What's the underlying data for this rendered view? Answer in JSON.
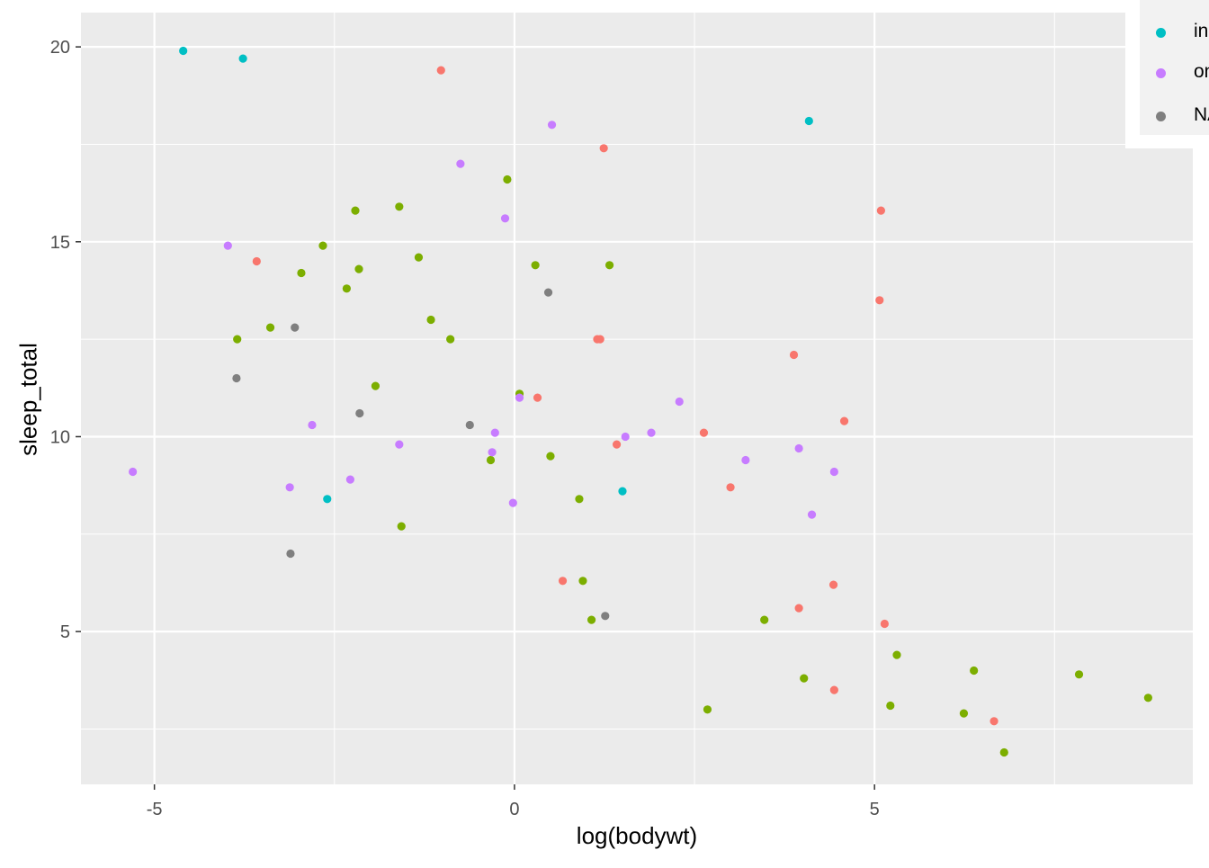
{
  "chart_data": {
    "type": "scatter",
    "title": "",
    "xlabel": "log(bodywt)",
    "ylabel": "sleep_total",
    "xlim": [
      -6.02,
      9.42
    ],
    "ylim": [
      1.08,
      20.88
    ],
    "x_ticks": [
      -5,
      0,
      5
    ],
    "x_tick_labels": [
      "-5",
      "0",
      "5"
    ],
    "y_ticks": [
      5,
      10,
      15,
      20
    ],
    "y_tick_labels": [
      "5",
      "10",
      "15",
      "20"
    ],
    "grid": true,
    "legend_position": "right",
    "legend_entries": [
      {
        "label": "in",
        "color": "#00BFC4"
      },
      {
        "label": "om",
        "color": "#C77CFF"
      },
      {
        "label": "NA",
        "color": "#7F7F7F"
      }
    ],
    "series": [
      {
        "color": "#F8766D",
        "points": [
          [
            -1.02,
            19.4
          ],
          [
            -3.58,
            14.5
          ],
          [
            1.24,
            17.4
          ],
          [
            1.15,
            12.5
          ],
          [
            1.19,
            12.5
          ],
          [
            0.32,
            11.0
          ],
          [
            1.42,
            9.8
          ],
          [
            2.63,
            10.1
          ],
          [
            3.0,
            8.7
          ],
          [
            3.88,
            12.1
          ],
          [
            5.09,
            15.8
          ],
          [
            5.07,
            13.5
          ],
          [
            4.58,
            10.4
          ],
          [
            0.67,
            6.3
          ],
          [
            3.95,
            5.6
          ],
          [
            4.43,
            6.2
          ],
          [
            5.14,
            5.2
          ],
          [
            4.44,
            3.5
          ],
          [
            6.66,
            2.7
          ]
        ]
      },
      {
        "color": "#7CAE00",
        "points": [
          [
            -0.1,
            16.6
          ],
          [
            -2.21,
            15.8
          ],
          [
            -1.6,
            15.9
          ],
          [
            -2.66,
            14.9
          ],
          [
            -2.96,
            14.2
          ],
          [
            -2.16,
            14.3
          ],
          [
            -1.33,
            14.6
          ],
          [
            -2.33,
            13.8
          ],
          [
            0.29,
            14.4
          ],
          [
            1.32,
            14.4
          ],
          [
            -3.39,
            12.8
          ],
          [
            -1.16,
            13.0
          ],
          [
            -0.89,
            12.5
          ],
          [
            -3.85,
            12.5
          ],
          [
            -1.93,
            11.3
          ],
          [
            0.07,
            11.1
          ],
          [
            -0.33,
            9.4
          ],
          [
            0.5,
            9.5
          ],
          [
            0.9,
            8.4
          ],
          [
            -1.57,
            7.7
          ],
          [
            0.95,
            6.3
          ],
          [
            1.07,
            5.3
          ],
          [
            3.47,
            5.3
          ],
          [
            2.68,
            3.0
          ],
          [
            4.02,
            3.8
          ],
          [
            5.31,
            4.4
          ],
          [
            6.38,
            4.0
          ],
          [
            5.22,
            3.1
          ],
          [
            6.24,
            2.9
          ],
          [
            6.8,
            1.9
          ],
          [
            7.84,
            3.9
          ],
          [
            8.8,
            3.3
          ]
        ]
      },
      {
        "color": "#00BFC4",
        "points": [
          [
            -4.6,
            19.9
          ],
          [
            -3.77,
            19.7
          ],
          [
            4.09,
            18.1
          ],
          [
            -2.6,
            8.4
          ],
          [
            1.5,
            8.6
          ]
        ]
      },
      {
        "color": "#C77CFF",
        "points": [
          [
            -5.3,
            9.1
          ],
          [
            -3.98,
            14.9
          ],
          [
            -2.81,
            10.3
          ],
          [
            -3.12,
            8.7
          ],
          [
            -2.28,
            8.9
          ],
          [
            -1.6,
            9.8
          ],
          [
            -0.75,
            17.0
          ],
          [
            0.52,
            18.0
          ],
          [
            -0.13,
            15.6
          ],
          [
            0.07,
            11.0
          ],
          [
            -0.27,
            10.1
          ],
          [
            -0.31,
            9.6
          ],
          [
            -0.02,
            8.3
          ],
          [
            1.54,
            10.0
          ],
          [
            1.9,
            10.1
          ],
          [
            2.29,
            10.9
          ],
          [
            3.21,
            9.4
          ],
          [
            3.95,
            9.7
          ],
          [
            4.44,
            9.1
          ],
          [
            4.13,
            8.0
          ]
        ]
      },
      {
        "color": "#7F7F7F",
        "points": [
          [
            -3.86,
            11.5
          ],
          [
            -3.05,
            12.8
          ],
          [
            -2.15,
            10.6
          ],
          [
            -0.62,
            10.3
          ],
          [
            0.47,
            13.7
          ],
          [
            -3.11,
            7.0
          ],
          [
            1.26,
            5.4
          ]
        ]
      }
    ]
  }
}
